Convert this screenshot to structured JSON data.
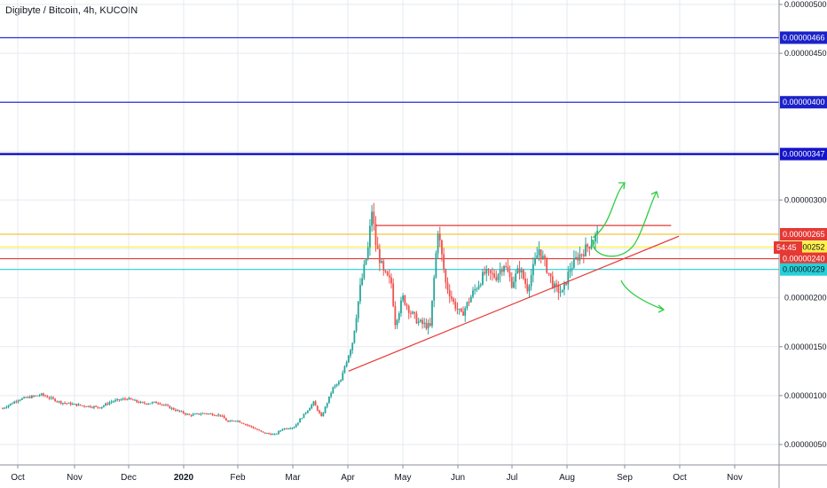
{
  "chart_title": "Digibyte / Bitcoin, 4h, KUCOIN",
  "chart_data": {
    "type": "candlestick",
    "title": "Digibyte / Bitcoin, 4h, KUCOIN",
    "y_axis": {
      "position": "right",
      "ylim": [
        4e-07,
        5e-06
      ],
      "ticks": [
        {
          "v": 5e-06,
          "label": "0.00000500"
        },
        {
          "v": 4.5e-06,
          "label": "0.00000450"
        },
        {
          "v": 3e-06,
          "label": "0.00000300"
        },
        {
          "v": 1.5e-06,
          "label": "0.00000150"
        },
        {
          "v": 1e-06,
          "label": "0.00000100"
        },
        {
          "v": 5e-07,
          "label": "0.00000050"
        }
      ],
      "partial_labels": [
        {
          "v": 2.5e-06,
          "label": "0.000"
        },
        {
          "v": 2e-06,
          "label": "0.00000200"
        }
      ]
    },
    "x_axis": {
      "labels": [
        "Oct",
        "Nov",
        "Dec",
        "2020",
        "Feb",
        "Mar",
        "Apr",
        "May",
        "Jun",
        "Jul",
        "Aug",
        "Sep",
        "Oct",
        "Nov"
      ],
      "bold_labels": [
        "2020"
      ]
    },
    "price_path": [
      [
        0,
        8.7e-07
      ],
      [
        4,
        9.6e-07
      ],
      [
        10,
        1.01e-06
      ],
      [
        15,
        9.3e-07
      ],
      [
        20,
        9e-07
      ],
      [
        25,
        8.8e-07
      ],
      [
        28,
        9.4e-07
      ],
      [
        32,
        9.7e-07
      ],
      [
        36,
        9.2e-07
      ],
      [
        40,
        9.3e-07
      ],
      [
        44,
        8.6e-07
      ],
      [
        48,
        8e-07
      ],
      [
        52,
        8.2e-07
      ],
      [
        56,
        8e-07
      ],
      [
        58,
        7.3e-07
      ],
      [
        60,
        7.5e-07
      ],
      [
        64,
        6.8e-07
      ],
      [
        67,
        6.2e-07
      ],
      [
        70,
        6e-07
      ],
      [
        72,
        6.6e-07
      ],
      [
        75,
        6.8e-07
      ],
      [
        78,
        8.3e-07
      ],
      [
        80,
        9.3e-07
      ],
      [
        82,
        7.8e-07
      ],
      [
        85,
        1.08e-06
      ],
      [
        87,
        1.15e-06
      ],
      [
        88,
        1.3e-06
      ],
      [
        90,
        1.55e-06
      ],
      [
        92,
        2.1e-06
      ],
      [
        94,
        2.5e-06
      ],
      [
        95,
        2.9e-06
      ],
      [
        96,
        2.55e-06
      ],
      [
        98,
        2.25e-06
      ],
      [
        100,
        2.15e-06
      ],
      [
        101,
        1.75e-06
      ],
      [
        103,
        2e-06
      ],
      [
        105,
        1.85e-06
      ],
      [
        107,
        1.75e-06
      ],
      [
        110,
        1.7e-06
      ],
      [
        112,
        2.7e-06
      ],
      [
        114,
        2.15e-06
      ],
      [
        116,
        1.95e-06
      ],
      [
        118,
        1.82e-06
      ],
      [
        121,
        2.05e-06
      ],
      [
        124,
        2.25e-06
      ],
      [
        127,
        2.22e-06
      ],
      [
        129,
        2.35e-06
      ],
      [
        131,
        2.15e-06
      ],
      [
        133,
        2.3e-06
      ],
      [
        135,
        2.1e-06
      ],
      [
        138,
        2.5e-06
      ],
      [
        140,
        2.3e-06
      ],
      [
        142,
        2.1e-06
      ],
      [
        144,
        2.05e-06
      ],
      [
        146,
        2.3e-06
      ],
      [
        148,
        2.42e-06
      ],
      [
        150,
        2.5e-06
      ],
      [
        153,
        2.65e-06
      ]
    ],
    "horizontal_levels": [
      {
        "value": 4.66e-06,
        "label": "0.00000466",
        "color": "#2a2ed8",
        "badge_bg": "#1c22c8",
        "badge_fg": "#ffffff"
      },
      {
        "value": 4e-06,
        "label": "0.00000400",
        "color": "#2a2ed8",
        "badge_bg": "#1c22c8",
        "badge_fg": "#ffffff"
      },
      {
        "value": 3.47e-06,
        "label": "0.00000347",
        "color": "#1414c8",
        "badge_bg": "#1414c8",
        "badge_fg": "#ffffff"
      },
      {
        "value": 2.65e-06,
        "label": "0.00000265",
        "color": "#f4c542",
        "badge_bg": "#e53935",
        "badge_fg": "#ffffff"
      },
      {
        "value": 2.52e-06,
        "label": "0.00000252",
        "color": "#fff04a",
        "badge_bg": "#fff04a",
        "badge_fg": "#131722"
      },
      {
        "value": 2.4e-06,
        "label": "0.00000240",
        "color": "#e53935",
        "badge_bg": "#e53935",
        "badge_fg": "#ffffff"
      },
      {
        "value": 2.29e-06,
        "label": "0.00000229",
        "color": "#26d0d8",
        "badge_bg": "#26d0d8",
        "badge_fg": "#131722"
      }
    ],
    "countdown": "54:45",
    "drawings": {
      "triangle_top": {
        "value": 2.74e-06,
        "from_index": 96,
        "to_index": 172,
        "color": "#e53935"
      },
      "triangle_bottom": {
        "points": [
          [
            89,
            1.25e-06
          ],
          [
            174,
            2.63e-06
          ]
        ],
        "color": "#e53935"
      },
      "projection_arrows_color": "#2ecc40"
    },
    "colors": {
      "up": "#26a69a",
      "down": "#ef5350",
      "grid": "#e6e9ef"
    }
  }
}
